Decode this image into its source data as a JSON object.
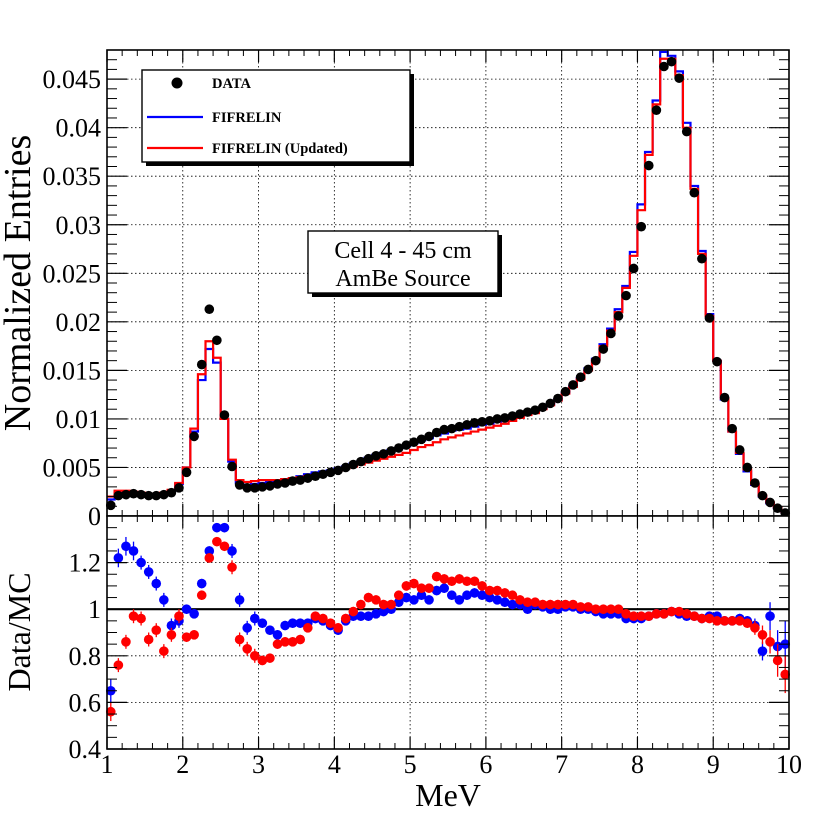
{
  "chart_data": [
    {
      "type": "line",
      "panel": "top",
      "ylabel": "Normalized Entries",
      "xlim": [
        1,
        10
      ],
      "ylim": [
        0,
        0.048
      ],
      "x_ticks": [
        1,
        2,
        3,
        4,
        5,
        6,
        7,
        8,
        9,
        10
      ],
      "y_ticks": [
        0,
        0.005,
        0.01,
        0.015,
        0.02,
        0.025,
        0.03,
        0.035,
        0.04,
        0.045
      ],
      "y_tick_labels": [
        "0",
        "0.005",
        "0.01",
        "0.015",
        "0.02",
        "0.025",
        "0.03",
        "0.035",
        "0.04",
        "0.045"
      ],
      "grid": true,
      "legend_position": "top-left",
      "annotation": [
        "Cell 4 - 45 cm",
        "AmBe Source"
      ],
      "bin_width": 0.1,
      "bin_centers": [
        1.05,
        1.15,
        1.25,
        1.35,
        1.45,
        1.55,
        1.65,
        1.75,
        1.85,
        1.95,
        2.05,
        2.15,
        2.25,
        2.35,
        2.45,
        2.55,
        2.65,
        2.75,
        2.85,
        2.95,
        3.05,
        3.15,
        3.25,
        3.35,
        3.45,
        3.55,
        3.65,
        3.75,
        3.85,
        3.95,
        4.05,
        4.15,
        4.25,
        4.35,
        4.45,
        4.55,
        4.65,
        4.75,
        4.85,
        4.95,
        5.05,
        5.15,
        5.25,
        5.35,
        5.45,
        5.55,
        5.65,
        5.75,
        5.85,
        5.95,
        6.05,
        6.15,
        6.25,
        6.35,
        6.45,
        6.55,
        6.65,
        6.75,
        6.85,
        6.95,
        7.05,
        7.15,
        7.25,
        7.35,
        7.45,
        7.55,
        7.65,
        7.75,
        7.85,
        7.95,
        8.05,
        8.15,
        8.25,
        8.35,
        8.45,
        8.55,
        8.65,
        8.75,
        8.85,
        8.95,
        9.05,
        9.15,
        9.25,
        9.35,
        9.45,
        9.55,
        9.65,
        9.75,
        9.85,
        9.95
      ],
      "series": [
        {
          "name": "DATA",
          "style": "markers",
          "color": "#000000",
          "values": [
            0.0011,
            0.0021,
            0.0022,
            0.0023,
            0.0022,
            0.0021,
            0.0021,
            0.0022,
            0.0024,
            0.0029,
            0.0045,
            0.0082,
            0.0156,
            0.0213,
            0.0181,
            0.0104,
            0.0051,
            0.0032,
            0.0029,
            0.0029,
            0.003,
            0.0031,
            0.0033,
            0.0034,
            0.0036,
            0.0037,
            0.0039,
            0.0041,
            0.0043,
            0.0045,
            0.0047,
            0.005,
            0.0053,
            0.0056,
            0.0059,
            0.0062,
            0.0064,
            0.0067,
            0.007,
            0.0073,
            0.0076,
            0.0079,
            0.0082,
            0.0086,
            0.0089,
            0.009,
            0.0092,
            0.0094,
            0.0096,
            0.0097,
            0.0098,
            0.01,
            0.0101,
            0.0103,
            0.0105,
            0.0107,
            0.0109,
            0.0112,
            0.0116,
            0.0121,
            0.0128,
            0.0135,
            0.0143,
            0.0151,
            0.016,
            0.0172,
            0.0188,
            0.0206,
            0.0227,
            0.0255,
            0.0298,
            0.0361,
            0.0418,
            0.0463,
            0.0468,
            0.0451,
            0.0396,
            0.0333,
            0.0265,
            0.0204,
            0.0159,
            0.0122,
            0.009,
            0.0068,
            0.005,
            0.0034,
            0.0021,
            0.0014,
            0.0008,
            0.0003
          ]
        },
        {
          "name": "FIFRELIN",
          "style": "step",
          "color": "#0000ff",
          "values": [
            0.0017,
            0.0024,
            0.0024,
            0.0023,
            0.0023,
            0.0022,
            0.0022,
            0.0023,
            0.0026,
            0.0033,
            0.005,
            0.0087,
            0.014,
            0.0172,
            0.0158,
            0.01,
            0.0056,
            0.0034,
            0.0031,
            0.0033,
            0.0034,
            0.0035,
            0.0036,
            0.0038,
            0.0039,
            0.0041,
            0.0043,
            0.0045,
            0.0046,
            0.0047,
            0.0049,
            0.0051,
            0.0054,
            0.0056,
            0.006,
            0.0063,
            0.0065,
            0.0068,
            0.007,
            0.0072,
            0.0075,
            0.0078,
            0.008,
            0.0083,
            0.0085,
            0.0088,
            0.0089,
            0.009,
            0.0092,
            0.0094,
            0.0095,
            0.0097,
            0.0099,
            0.0101,
            0.0103,
            0.0105,
            0.0108,
            0.0111,
            0.0115,
            0.012,
            0.0127,
            0.0134,
            0.0142,
            0.0152,
            0.0162,
            0.0177,
            0.0193,
            0.0213,
            0.0237,
            0.0272,
            0.0321,
            0.0375,
            0.0428,
            0.0478,
            0.0474,
            0.0458,
            0.0405,
            0.034,
            0.0273,
            0.0208,
            0.016,
            0.012,
            0.0087,
            0.0064,
            0.0046,
            0.0032,
            0.002,
            0.0013,
            0.0008,
            0.0004
          ]
        },
        {
          "name": "FIFRELIN (Updated)",
          "style": "step",
          "color": "#ff0000",
          "values": [
            0.002,
            0.0026,
            0.0026,
            0.0025,
            0.0024,
            0.0023,
            0.0023,
            0.0024,
            0.0027,
            0.0034,
            0.005,
            0.009,
            0.0146,
            0.018,
            0.0163,
            0.01,
            0.0058,
            0.0037,
            0.0035,
            0.0036,
            0.0037,
            0.0037,
            0.0037,
            0.0038,
            0.0039,
            0.004,
            0.0041,
            0.0042,
            0.0043,
            0.0045,
            0.0047,
            0.0049,
            0.0051,
            0.0053,
            0.0055,
            0.0057,
            0.0059,
            0.0061,
            0.0063,
            0.0065,
            0.0068,
            0.0071,
            0.0073,
            0.0076,
            0.0079,
            0.0081,
            0.0083,
            0.0085,
            0.0087,
            0.0089,
            0.0091,
            0.0093,
            0.0095,
            0.0098,
            0.0101,
            0.0104,
            0.0106,
            0.011,
            0.0114,
            0.0119,
            0.0126,
            0.0133,
            0.0141,
            0.015,
            0.0161,
            0.0175,
            0.0191,
            0.021,
            0.0235,
            0.0268,
            0.0315,
            0.0372,
            0.0424,
            0.0471,
            0.0471,
            0.0454,
            0.04,
            0.0337,
            0.027,
            0.0206,
            0.016,
            0.0121,
            0.0087,
            0.0065,
            0.0048,
            0.0033,
            0.0021,
            0.0014,
            0.0009,
            0.0004
          ]
        }
      ]
    },
    {
      "type": "scatter",
      "panel": "bottom",
      "xlabel": "MeV",
      "ylabel": "Data/MC",
      "xlim": [
        1,
        10
      ],
      "ylim": [
        0.4,
        1.4
      ],
      "x_ticks": [
        1,
        2,
        3,
        4,
        5,
        6,
        7,
        8,
        9,
        10
      ],
      "x_tick_labels": [
        "1",
        "2",
        "3",
        "4",
        "5",
        "6",
        "7",
        "8",
        "9",
        "10"
      ],
      "y_ticks": [
        0.4,
        0.6,
        0.8,
        1,
        1.2
      ],
      "y_tick_labels": [
        "0.4",
        "0.6",
        "0.8",
        "1",
        "1.2"
      ],
      "reference_line": 1,
      "grid": true,
      "bin_centers": [
        1.05,
        1.15,
        1.25,
        1.35,
        1.45,
        1.55,
        1.65,
        1.75,
        1.85,
        1.95,
        2.05,
        2.15,
        2.25,
        2.35,
        2.45,
        2.55,
        2.65,
        2.75,
        2.85,
        2.95,
        3.05,
        3.15,
        3.25,
        3.35,
        3.45,
        3.55,
        3.65,
        3.75,
        3.85,
        3.95,
        4.05,
        4.15,
        4.25,
        4.35,
        4.45,
        4.55,
        4.65,
        4.75,
        4.85,
        4.95,
        5.05,
        5.15,
        5.25,
        5.35,
        5.45,
        5.55,
        5.65,
        5.75,
        5.85,
        5.95,
        6.05,
        6.15,
        6.25,
        6.35,
        6.45,
        6.55,
        6.65,
        6.75,
        6.85,
        6.95,
        7.05,
        7.15,
        7.25,
        7.35,
        7.45,
        7.55,
        7.65,
        7.75,
        7.85,
        7.95,
        8.05,
        8.15,
        8.25,
        8.35,
        8.45,
        8.55,
        8.65,
        8.75,
        8.85,
        8.95,
        9.05,
        9.15,
        9.25,
        9.35,
        9.45,
        9.55,
        9.65,
        9.75,
        9.85,
        9.95
      ],
      "series": [
        {
          "name": "FIFRELIN",
          "color": "#0000ff",
          "values": [
            0.65,
            1.22,
            1.27,
            1.25,
            1.2,
            1.16,
            1.11,
            1.04,
            0.93,
            0.95,
            1.0,
            0.98,
            1.11,
            1.25,
            1.35,
            1.35,
            1.25,
            1.04,
            0.92,
            0.96,
            0.94,
            0.91,
            0.89,
            0.93,
            0.94,
            0.94,
            0.94,
            0.96,
            0.95,
            0.93,
            0.91,
            0.95,
            0.97,
            0.97,
            0.97,
            0.98,
            0.99,
            1.0,
            1.03,
            1.05,
            1.04,
            1.06,
            1.04,
            1.08,
            1.09,
            1.06,
            1.04,
            1.06,
            1.07,
            1.06,
            1.05,
            1.04,
            1.03,
            1.02,
            1.02,
            1.0,
            1.02,
            1.01,
            1.0,
            1.0,
            1.01,
            1.01,
            1.0,
            1.0,
            0.99,
            0.98,
            0.98,
            0.98,
            0.96,
            0.96,
            0.96,
            0.97,
            0.98,
            0.98,
            0.99,
            0.98,
            0.97,
            0.97,
            0.96,
            0.97,
            0.97,
            0.95,
            0.95,
            0.96,
            0.95,
            0.93,
            0.82,
            0.97,
            0.84,
            0.85
          ],
          "errors": [
            0.05,
            0.04,
            0.04,
            0.04,
            0.03,
            0.03,
            0.03,
            0.03,
            0.03,
            0.03,
            0.02,
            0.02,
            0.02,
            0.02,
            0.02,
            0.02,
            0.03,
            0.03,
            0.03,
            0.03,
            0.02,
            0.02,
            0.02,
            0.02,
            0.02,
            0.02,
            0.02,
            0.02,
            0.02,
            0.02,
            0.02,
            0.02,
            0.02,
            0.02,
            0.02,
            0.02,
            0.02,
            0.02,
            0.02,
            0.02,
            0.02,
            0.02,
            0.02,
            0.02,
            0.02,
            0.02,
            0.02,
            0.02,
            0.02,
            0.02,
            0.02,
            0.02,
            0.02,
            0.02,
            0.02,
            0.02,
            0.02,
            0.02,
            0.02,
            0.02,
            0.01,
            0.01,
            0.01,
            0.01,
            0.01,
            0.01,
            0.01,
            0.01,
            0.01,
            0.01,
            0.01,
            0.01,
            0.01,
            0.01,
            0.01,
            0.01,
            0.01,
            0.01,
            0.01,
            0.01,
            0.01,
            0.01,
            0.02,
            0.02,
            0.02,
            0.03,
            0.04,
            0.06,
            0.07,
            0.1
          ]
        },
        {
          "name": "FIFRELIN (Updated)",
          "color": "#ff0000",
          "values": [
            0.56,
            0.76,
            0.86,
            0.97,
            0.96,
            0.87,
            0.91,
            0.82,
            0.89,
            0.97,
            0.88,
            0.89,
            1.06,
            1.22,
            1.29,
            1.27,
            1.18,
            0.87,
            0.83,
            0.8,
            0.78,
            0.79,
            0.85,
            0.86,
            0.86,
            0.87,
            0.92,
            0.97,
            0.96,
            0.94,
            0.92,
            0.96,
            0.99,
            1.02,
            1.05,
            1.04,
            1.02,
            1.02,
            1.06,
            1.1,
            1.11,
            1.09,
            1.09,
            1.14,
            1.13,
            1.12,
            1.13,
            1.12,
            1.12,
            1.1,
            1.08,
            1.08,
            1.07,
            1.06,
            1.04,
            1.03,
            1.03,
            1.02,
            1.02,
            1.02,
            1.02,
            1.02,
            1.01,
            1.01,
            1.0,
            1.0,
            1.0,
            1.0,
            0.98,
            0.97,
            0.97,
            0.97,
            0.98,
            0.98,
            0.99,
            0.99,
            0.98,
            0.97,
            0.96,
            0.96,
            0.95,
            0.95,
            0.95,
            0.95,
            0.94,
            0.92,
            0.89,
            0.86,
            0.78,
            0.72
          ],
          "errors": [
            0.04,
            0.03,
            0.03,
            0.03,
            0.03,
            0.03,
            0.03,
            0.03,
            0.03,
            0.03,
            0.02,
            0.02,
            0.02,
            0.02,
            0.02,
            0.02,
            0.03,
            0.03,
            0.03,
            0.03,
            0.02,
            0.02,
            0.02,
            0.02,
            0.02,
            0.02,
            0.02,
            0.02,
            0.02,
            0.02,
            0.02,
            0.02,
            0.02,
            0.02,
            0.02,
            0.02,
            0.02,
            0.02,
            0.02,
            0.02,
            0.02,
            0.02,
            0.02,
            0.02,
            0.02,
            0.02,
            0.02,
            0.02,
            0.02,
            0.02,
            0.02,
            0.02,
            0.02,
            0.02,
            0.02,
            0.02,
            0.02,
            0.02,
            0.02,
            0.02,
            0.01,
            0.01,
            0.01,
            0.01,
            0.01,
            0.01,
            0.01,
            0.01,
            0.01,
            0.01,
            0.01,
            0.01,
            0.01,
            0.01,
            0.01,
            0.01,
            0.01,
            0.01,
            0.01,
            0.01,
            0.01,
            0.01,
            0.02,
            0.02,
            0.02,
            0.03,
            0.04,
            0.05,
            0.07,
            0.08
          ]
        }
      ]
    }
  ]
}
